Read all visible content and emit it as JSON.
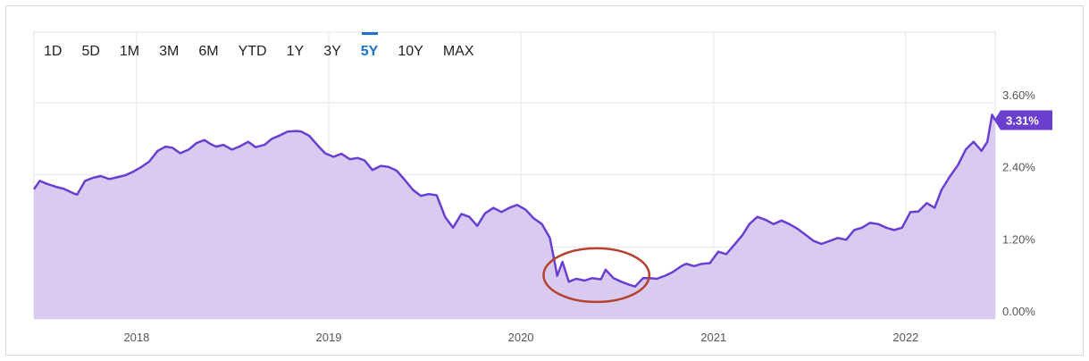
{
  "range_selector": {
    "options": [
      "1D",
      "5D",
      "1M",
      "3M",
      "6M",
      "YTD",
      "1Y",
      "3Y",
      "5Y",
      "10Y",
      "MAX"
    ],
    "selected": "5Y",
    "accent_color": "#1a73c8"
  },
  "chart_data": {
    "type": "area",
    "title": "",
    "xlabel": "",
    "ylabel": "",
    "x_ticks": [
      "2018",
      "2019",
      "2020",
      "2021",
      "2022"
    ],
    "y_ticks": [
      "0.00%",
      "1.20%",
      "2.40%",
      "3.60%"
    ],
    "ylim": [
      0,
      3.6
    ],
    "xlim": [
      "2017-06-20",
      "2022-06-20"
    ],
    "grid": true,
    "line_color": "#6a3fd0",
    "fill_color": "#d9cbf0",
    "last_value_label": "3.31%",
    "annotation": {
      "type": "circle",
      "color": "#b5412e",
      "covers": [
        "2020-03",
        "2020-08"
      ]
    },
    "series": [
      {
        "x": [
          "2017-06-20",
          "2017-07-01",
          "2017-07-15",
          "2017-08-01",
          "2017-08-15",
          "2017-09-01",
          "2017-09-10",
          "2017-09-25",
          "2017-10-10",
          "2017-10-25",
          "2017-11-10",
          "2017-11-25",
          "2017-12-10",
          "2017-12-25",
          "2018-01-10",
          "2018-01-25",
          "2018-02-10",
          "2018-02-25",
          "2018-03-10",
          "2018-03-25",
          "2018-04-10",
          "2018-04-25",
          "2018-05-10",
          "2018-05-20",
          "2018-06-01",
          "2018-06-15",
          "2018-07-01",
          "2018-07-15",
          "2018-08-01",
          "2018-08-15",
          "2018-09-01",
          "2018-09-15",
          "2018-10-01",
          "2018-10-15",
          "2018-11-01",
          "2018-11-10",
          "2018-11-25",
          "2018-12-10",
          "2018-12-25",
          "2019-01-10",
          "2019-01-25",
          "2019-02-10",
          "2019-02-25",
          "2019-03-10",
          "2019-03-25",
          "2019-04-10",
          "2019-04-25",
          "2019-05-10",
          "2019-05-25",
          "2019-06-10",
          "2019-06-25",
          "2019-07-10",
          "2019-07-25",
          "2019-08-10",
          "2019-08-25",
          "2019-09-10",
          "2019-09-25",
          "2019-10-10",
          "2019-10-25",
          "2019-11-10",
          "2019-11-25",
          "2019-12-10",
          "2019-12-25",
          "2020-01-10",
          "2020-01-25",
          "2020-02-10",
          "2020-02-25",
          "2020-03-05",
          "2020-03-10",
          "2020-03-20",
          "2020-04-01",
          "2020-04-15",
          "2020-05-01",
          "2020-05-15",
          "2020-06-01",
          "2020-06-10",
          "2020-06-25",
          "2020-07-10",
          "2020-07-25",
          "2020-08-05",
          "2020-08-20",
          "2020-09-01",
          "2020-09-15",
          "2020-10-01",
          "2020-10-15",
          "2020-11-01",
          "2020-11-10",
          "2020-11-25",
          "2020-12-10",
          "2020-12-25",
          "2021-01-10",
          "2021-01-25",
          "2021-02-10",
          "2021-02-25",
          "2021-03-10",
          "2021-03-25",
          "2021-04-10",
          "2021-04-25",
          "2021-05-10",
          "2021-05-25",
          "2021-06-10",
          "2021-06-25",
          "2021-07-10",
          "2021-07-25",
          "2021-08-10",
          "2021-08-25",
          "2021-09-10",
          "2021-09-25",
          "2021-10-10",
          "2021-10-25",
          "2021-11-10",
          "2021-11-25",
          "2021-12-10",
          "2021-12-25",
          "2022-01-10",
          "2022-01-25",
          "2022-02-10",
          "2022-02-25",
          "2022-03-10",
          "2022-03-25",
          "2022-04-10",
          "2022-04-25",
          "2022-05-10",
          "2022-05-25",
          "2022-06-05",
          "2022-06-14",
          "2022-06-20"
        ],
        "y": [
          2.16,
          2.3,
          2.25,
          2.2,
          2.17,
          2.1,
          2.07,
          2.3,
          2.35,
          2.38,
          2.33,
          2.36,
          2.39,
          2.45,
          2.53,
          2.62,
          2.8,
          2.87,
          2.85,
          2.76,
          2.82,
          2.93,
          2.98,
          2.92,
          2.87,
          2.9,
          2.82,
          2.87,
          2.95,
          2.86,
          2.9,
          3.0,
          3.06,
          3.12,
          3.13,
          3.12,
          3.05,
          2.9,
          2.76,
          2.7,
          2.75,
          2.66,
          2.68,
          2.64,
          2.48,
          2.55,
          2.53,
          2.47,
          2.32,
          2.15,
          2.05,
          2.08,
          2.06,
          1.7,
          1.52,
          1.75,
          1.7,
          1.55,
          1.76,
          1.85,
          1.78,
          1.85,
          1.9,
          1.82,
          1.68,
          1.58,
          1.35,
          0.95,
          0.72,
          0.95,
          0.62,
          0.67,
          0.64,
          0.68,
          0.66,
          0.82,
          0.68,
          0.62,
          0.57,
          0.54,
          0.68,
          0.68,
          0.67,
          0.72,
          0.78,
          0.88,
          0.92,
          0.88,
          0.92,
          0.93,
          1.12,
          1.08,
          1.24,
          1.4,
          1.58,
          1.7,
          1.65,
          1.58,
          1.64,
          1.58,
          1.5,
          1.4,
          1.3,
          1.25,
          1.3,
          1.35,
          1.32,
          1.48,
          1.52,
          1.6,
          1.58,
          1.52,
          1.48,
          1.52,
          1.78,
          1.79,
          1.93,
          1.85,
          2.15,
          2.36,
          2.56,
          2.82,
          2.95,
          2.8,
          2.95,
          3.4,
          3.31
        ]
      }
    ]
  }
}
